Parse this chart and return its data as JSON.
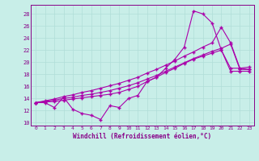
{
  "xlabel": "Windchill (Refroidissement éolien,°C)",
  "bg_color": "#c8eee8",
  "line_color": "#aa00aa",
  "grid_color": "#b0ddd8",
  "axis_color": "#880088",
  "x_ticks": [
    0,
    1,
    2,
    3,
    4,
    5,
    6,
    7,
    8,
    9,
    10,
    11,
    12,
    13,
    14,
    15,
    16,
    17,
    18,
    19,
    20,
    21,
    22,
    23
  ],
  "y_ticks": [
    10,
    12,
    14,
    16,
    18,
    20,
    22,
    24,
    26,
    28
  ],
  "xlim": [
    -0.5,
    23.5
  ],
  "ylim": [
    9.5,
    29.5
  ],
  "series_jagged_x": [
    0,
    1,
    2,
    3,
    4,
    5,
    6,
    7,
    8,
    9,
    10,
    11,
    12,
    13,
    14,
    15,
    16,
    17,
    18,
    19,
    20,
    21,
    22,
    23
  ],
  "series_jagged_y": [
    13.3,
    13.3,
    12.5,
    14.2,
    12.2,
    11.5,
    11.2,
    10.5,
    12.8,
    12.5,
    14.0,
    14.5,
    16.8,
    17.5,
    19.0,
    20.5,
    22.5,
    28.5,
    28.0,
    26.5,
    22.0,
    19.0,
    19.0,
    18.8
  ],
  "series_line1_x": [
    0,
    1,
    2,
    3,
    4,
    5,
    6,
    7,
    8,
    9,
    10,
    11,
    12,
    13,
    14,
    15,
    16,
    17,
    18,
    19,
    20,
    21,
    22,
    23
  ],
  "series_line1_y": [
    13.3,
    13.4,
    13.5,
    13.7,
    13.9,
    14.1,
    14.3,
    14.5,
    14.7,
    15.0,
    15.5,
    16.0,
    16.8,
    17.5,
    18.3,
    19.0,
    19.8,
    20.5,
    21.0,
    21.5,
    22.0,
    18.5,
    18.5,
    18.5
  ],
  "series_line2_x": [
    0,
    1,
    2,
    3,
    4,
    5,
    6,
    7,
    8,
    9,
    10,
    11,
    12,
    13,
    14,
    15,
    16,
    17,
    18,
    19,
    20,
    21,
    22,
    23
  ],
  "series_line2_y": [
    13.3,
    13.5,
    13.7,
    14.0,
    14.2,
    14.5,
    14.7,
    15.0,
    15.3,
    15.7,
    16.1,
    16.6,
    17.2,
    17.8,
    18.5,
    19.2,
    19.9,
    20.6,
    21.2,
    21.8,
    22.3,
    23.0,
    18.8,
    18.8
  ],
  "series_line3_x": [
    0,
    1,
    2,
    3,
    4,
    5,
    6,
    7,
    8,
    9,
    10,
    11,
    12,
    13,
    14,
    15,
    16,
    17,
    18,
    19,
    20,
    21,
    22,
    23
  ],
  "series_line3_y": [
    13.3,
    13.6,
    13.9,
    14.3,
    14.6,
    15.0,
    15.3,
    15.7,
    16.1,
    16.5,
    17.0,
    17.5,
    18.2,
    18.8,
    19.5,
    20.2,
    21.0,
    21.7,
    22.5,
    23.2,
    25.8,
    23.2,
    19.0,
    19.2
  ]
}
